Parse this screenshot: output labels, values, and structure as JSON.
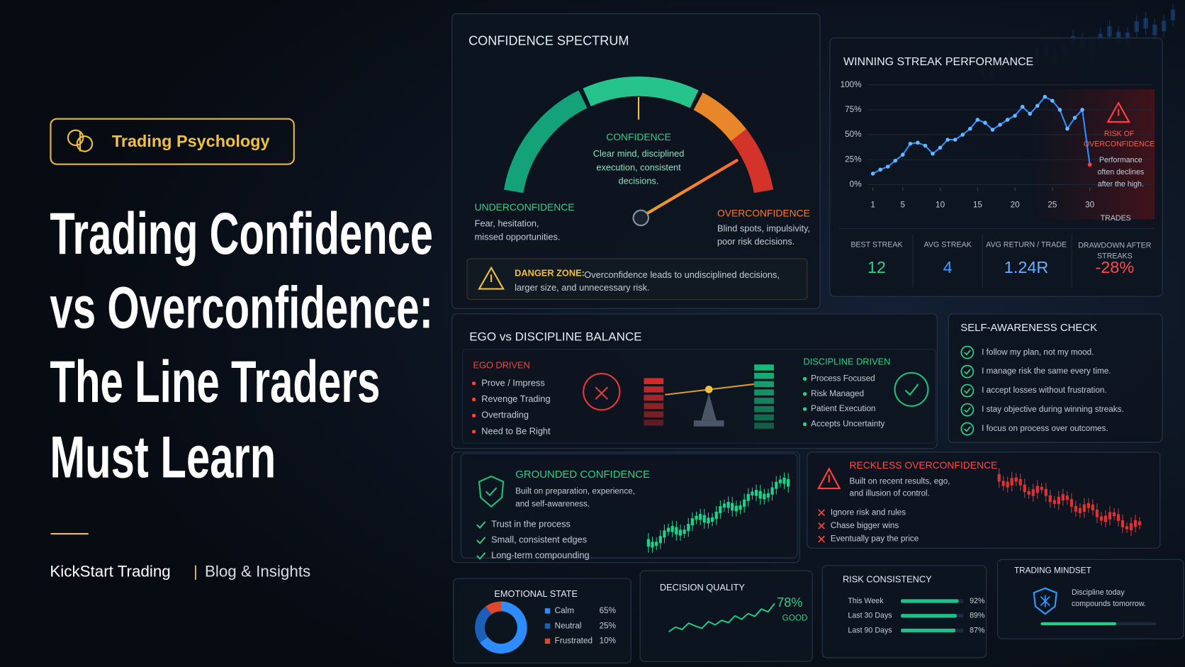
{
  "badge": "Trading Psychology",
  "headline": [
    "Trading Confidence",
    "vs Overconfidence:",
    "The Line Traders",
    "Must Learn"
  ],
  "footer": {
    "brand": "KickStart Trading",
    "separator": "|",
    "section": "Blog & Insights"
  },
  "confidence_spectrum": {
    "title": "CONFIDENCE SPECTRUM",
    "center": {
      "label": "CONFIDENCE",
      "lines": [
        "Clear mind, disciplined",
        "execution, consistent",
        "decisions."
      ]
    },
    "left": {
      "label": "UNDERCONFIDENCE",
      "lines": [
        "Fear, hesitation,",
        "missed opportunities."
      ]
    },
    "right": {
      "label": "OVERCONFIDENCE",
      "lines": [
        "Blind spots, impulsivity,",
        "poor risk decisions."
      ]
    },
    "warning": {
      "label": "DANGER ZONE:",
      "lines": [
        "Overconfidence leads to undisciplined decisions,",
        "larger size, and unnecessary risk."
      ]
    }
  },
  "winning_streak": {
    "title": "WINNING STREAK PERFORMANCE",
    "type": "line",
    "x": [
      1,
      2,
      3,
      4,
      5,
      6,
      7,
      8,
      9,
      10,
      11,
      12,
      13,
      14,
      15,
      16,
      17,
      18,
      19,
      20,
      21,
      22,
      23,
      24,
      25,
      26,
      27,
      28,
      29,
      30
    ],
    "values": [
      11,
      15,
      18,
      24,
      30,
      41,
      42,
      39,
      31,
      37,
      45,
      45,
      50,
      56,
      65,
      62,
      55,
      60,
      65,
      69,
      78,
      71,
      79,
      88,
      84,
      75,
      56,
      67,
      75,
      20
    ],
    "color": "#2f8cff",
    "xlim": [
      1,
      30
    ],
    "ylim": [
      0,
      100
    ],
    "xticks": [
      1,
      5,
      10,
      15,
      20,
      25,
      30
    ],
    "yticks": [
      {
        "value": 0,
        "label": "0%"
      },
      {
        "value": 25,
        "label": "25%"
      },
      {
        "value": 50,
        "label": "50%"
      },
      {
        "value": 75,
        "label": "75%"
      },
      {
        "value": 100,
        "label": "100%"
      }
    ],
    "x_label": "TRADES",
    "risk": {
      "label": [
        "RISK OF",
        "OVERCONFIDENCE"
      ],
      "lines": [
        "Performance",
        "often declines",
        "after the high."
      ]
    },
    "stats": [
      {
        "label": [
          "BEST STREAK"
        ],
        "value": "12",
        "color": "#2fd08a"
      },
      {
        "label": [
          "AVG STREAK"
        ],
        "value": "4",
        "color": "#3d9bff"
      },
      {
        "label": [
          "AVG RETURN / TRADE"
        ],
        "value": "1.24R",
        "color": "#6ab0ff"
      },
      {
        "label": [
          "DRAWDOWN AFTER",
          "STREAKS"
        ],
        "value": "-28%",
        "color": "#ff4a4a"
      }
    ]
  },
  "ego_discipline": {
    "title": "EGO vs DISCIPLINE BALANCE",
    "ego": {
      "label": "EGO DRIVEN",
      "items": [
        "Prove / Impress",
        "Revenge Trading",
        "Overtrading",
        "Need to Be Right"
      ]
    },
    "discipline": {
      "label": "DISCIPLINE DRIVEN",
      "items": [
        "Process Focused",
        "Risk Managed",
        "Patient Execution",
        "Accepts Uncertainty"
      ]
    }
  },
  "self_awareness": {
    "title": "SELF-AWARENESS CHECK",
    "items": [
      "I follow my plan, not my mood.",
      "I manage risk the same every time.",
      "I accept losses without frustration.",
      "I stay objective during winning streaks.",
      "I focus on process over outcomes."
    ]
  },
  "grounded": {
    "title": "GROUNDED CONFIDENCE",
    "lines": [
      "Built on preparation, experience,",
      "and self-awareness."
    ],
    "items": [
      "Trust in the process",
      "Small, consistent edges",
      "Long-term compounding"
    ]
  },
  "reckless": {
    "title": "RECKLESS OVERCONFIDENCE",
    "lines": [
      "Built on recent results, ego,",
      "and illusion of control."
    ],
    "items": [
      "Ignore risk and rules",
      "Chase bigger wins",
      "Eventually pay the price"
    ]
  },
  "emotional_state": {
    "title": "EMOTIONAL STATE",
    "type": "pie",
    "items": [
      {
        "name": "Calm",
        "value": 65,
        "value_label": "65%",
        "color": "#2f8cff"
      },
      {
        "name": "Neutral",
        "value": 25,
        "value_label": "25%",
        "color": "#1c5fb8"
      },
      {
        "name": "Frustrated",
        "value": 10,
        "value_label": "10%",
        "color": "#e0482a"
      }
    ]
  },
  "decision_quality": {
    "title": "DECISION QUALITY",
    "score": "78%",
    "rating": "GOOD",
    "values": [
      30,
      38,
      34,
      45,
      40,
      36,
      48,
      42,
      50,
      46,
      58,
      52,
      62,
      57,
      70,
      65,
      80
    ]
  },
  "risk_consistency": {
    "title": "RISK CONSISTENCY",
    "type": "bar",
    "categories": [
      "This Week",
      "Last 30 Days",
      "Last 90 Days"
    ],
    "values": [
      92,
      89,
      87
    ],
    "value_labels": [
      "92%",
      "89%",
      "87%"
    ],
    "xlim": [
      0,
      100
    ],
    "color": "#1fc08a"
  },
  "trading_mindset": {
    "title": "TRADING MINDSET",
    "lines": [
      "Discipline today",
      "compounds tomorrow."
    ]
  }
}
